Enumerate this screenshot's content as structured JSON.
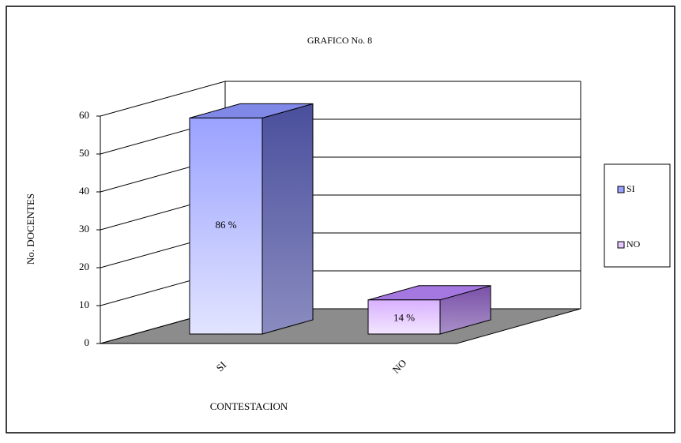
{
  "chart_data": {
    "type": "bar3d",
    "title": "GRAFICO No. 8",
    "x_label": "CONTESTACION",
    "y_label": "No. DOCENTES",
    "categories": [
      "SI",
      "NO"
    ],
    "series": [
      {
        "name": "SI",
        "color": "#9aa2ff",
        "values": [
          57,
          null
        ]
      },
      {
        "name": "NO",
        "color": "#e6c8ff",
        "values": [
          null,
          9
        ]
      }
    ],
    "annotations": [
      "86 %",
      "14 %"
    ],
    "ylim": [
      0,
      60
    ],
    "yticks": [
      0,
      10,
      20,
      30,
      40,
      50,
      60
    ],
    "grid": true,
    "legend": "right"
  }
}
